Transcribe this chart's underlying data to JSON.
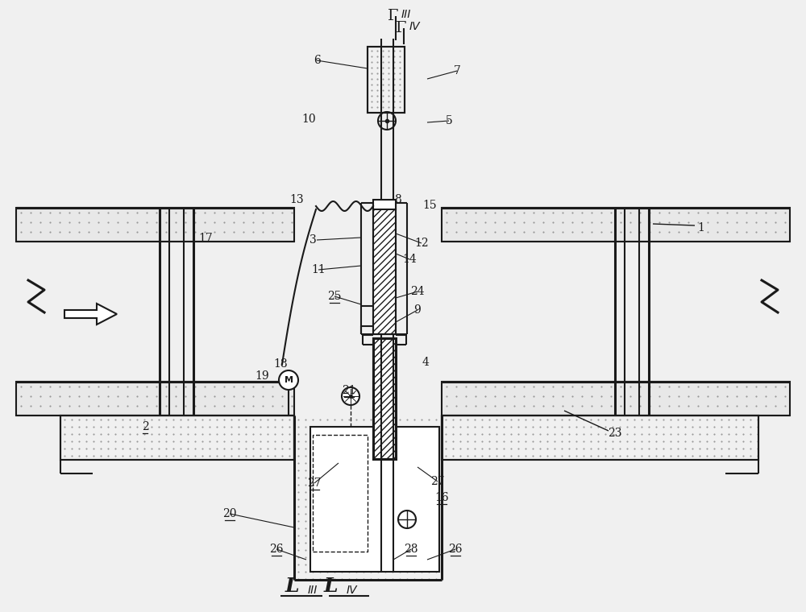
{
  "bg_color": "#f0f0f0",
  "line_color": "#1a1a1a",
  "concrete_color": "#cccccc",
  "white": "#ffffff",
  "hatch_color": "#999999",
  "labels": [
    [
      "1",
      870,
      283,
      false
    ],
    [
      "2",
      180,
      530,
      true
    ],
    [
      "3",
      388,
      298,
      false
    ],
    [
      "4",
      528,
      450,
      false
    ],
    [
      "5",
      557,
      150,
      false
    ],
    [
      "6",
      393,
      75,
      false
    ],
    [
      "7",
      567,
      88,
      false
    ],
    [
      "8",
      493,
      248,
      false
    ],
    [
      "9",
      518,
      385,
      false
    ],
    [
      "10",
      383,
      148,
      false
    ],
    [
      "11",
      395,
      335,
      false
    ],
    [
      "12",
      523,
      302,
      false
    ],
    [
      "13",
      368,
      248,
      false
    ],
    [
      "14",
      508,
      322,
      false
    ],
    [
      "15",
      533,
      255,
      false
    ],
    [
      "16",
      548,
      618,
      true
    ],
    [
      "17",
      255,
      296,
      false
    ],
    [
      "18",
      348,
      452,
      false
    ],
    [
      "19",
      325,
      467,
      false
    ],
    [
      "20",
      285,
      638,
      true
    ],
    [
      "21",
      433,
      485,
      true
    ],
    [
      "23",
      763,
      538,
      false
    ],
    [
      "24",
      518,
      362,
      false
    ],
    [
      "25",
      415,
      368,
      true
    ],
    [
      "26",
      343,
      682,
      true
    ],
    [
      "26",
      565,
      682,
      true
    ],
    [
      "27",
      390,
      600,
      true
    ],
    [
      "27",
      543,
      598,
      false
    ],
    [
      "28",
      510,
      682,
      true
    ]
  ]
}
